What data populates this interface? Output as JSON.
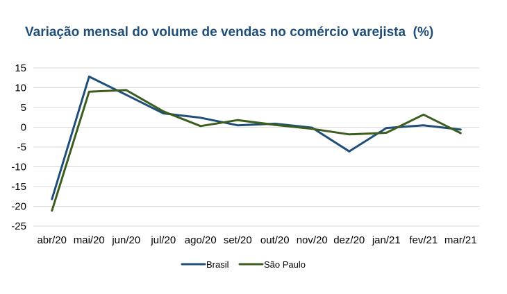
{
  "chart_data": {
    "type": "line",
    "title": "Variação mensal do volume de vendas no comércio varejista  (%)",
    "xlabel": "",
    "ylabel": "",
    "categories": [
      "abr/20",
      "mai/20",
      "jun/20",
      "jul/20",
      "ago/20",
      "set/20",
      "out/20",
      "nov/20",
      "dez/20",
      "jan/21",
      "fev/21",
      "mar/21"
    ],
    "ylim": [
      -25,
      15
    ],
    "yticks": [
      15,
      10,
      5,
      0,
      -5,
      -10,
      -15,
      -20,
      -25
    ],
    "grid": true,
    "legend_position": "bottom",
    "series": [
      {
        "name": "Brasil",
        "color": "#1F4E79",
        "values": [
          -18.2,
          12.8,
          8.2,
          3.5,
          2.4,
          0.5,
          0.9,
          -0.1,
          -6.1,
          -0.2,
          0.5,
          -0.6
        ]
      },
      {
        "name": "São Paulo",
        "color": "#3B5E1E",
        "values": [
          -21.1,
          9.0,
          9.4,
          4.0,
          0.3,
          1.8,
          0.6,
          -0.4,
          -1.8,
          -1.4,
          3.2,
          -1.5
        ]
      }
    ]
  }
}
